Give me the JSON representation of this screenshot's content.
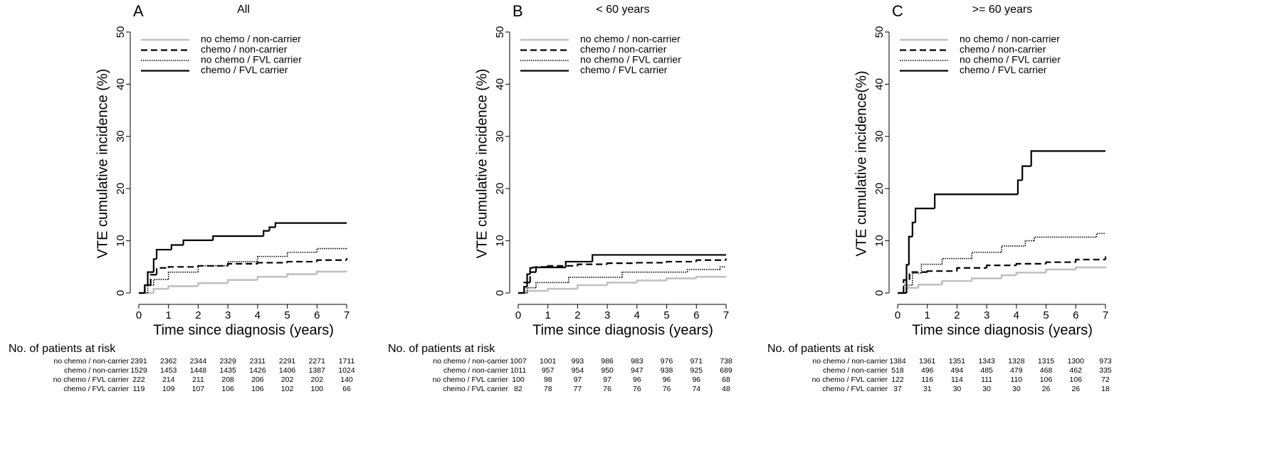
{
  "chart_data": [
    {
      "type": "line",
      "step": true,
      "panel": "A",
      "title": "All",
      "y_label": "VTE cumulative incidence (%)",
      "x_label": "Time since diagnosis (years)",
      "xlim": [
        0,
        7
      ],
      "xticks": [
        0,
        1,
        2,
        3,
        4,
        5,
        6,
        7
      ],
      "ylim": [
        0,
        50
      ],
      "yticks": [
        0,
        10,
        20,
        30,
        40,
        50
      ],
      "legend": "upper left",
      "series": [
        {
          "name": "no chemo / non-carrier",
          "color": "#c0c0c0",
          "style": "solid",
          "x": [
            0,
            0.5,
            1,
            2,
            3,
            4,
            5,
            6,
            7
          ],
          "values": [
            0,
            0.8,
            1.3,
            1.9,
            2.5,
            3.1,
            3.6,
            4.1,
            4.3
          ]
        },
        {
          "name": "chemo / non-carrier",
          "color": "#000000",
          "style": "dashed",
          "x": [
            0,
            0.2,
            0.4,
            0.6,
            1,
            2,
            3,
            4,
            5,
            6,
            7
          ],
          "values": [
            0,
            1.5,
            3.5,
            4.8,
            5,
            5.2,
            5.6,
            5.8,
            6,
            6.3,
            6.7
          ]
        },
        {
          "name": "no chemo / FVL carrier",
          "color": "#000000",
          "style": "dotted",
          "x": [
            0,
            0.3,
            0.5,
            1,
            2,
            3,
            4,
            5,
            6,
            7
          ],
          "values": [
            0,
            1.5,
            2.6,
            4,
            5.2,
            6,
            7,
            7.8,
            8.5,
            8.6
          ]
        },
        {
          "name": "chemo / FVL carrier",
          "color": "#000000",
          "style": "solid",
          "x": [
            0,
            0.2,
            0.3,
            0.5,
            0.6,
            1.1,
            1.5,
            2.5,
            4.2,
            4.4,
            4.6,
            7
          ],
          "values": [
            0,
            1.5,
            4,
            6.5,
            8.3,
            9.2,
            10.1,
            10.9,
            11.9,
            12.6,
            13.4,
            13.4
          ]
        }
      ],
      "risk_table": {
        "title": "No. of patients at risk",
        "rows": [
          {
            "label": "no chemo / non-carrier",
            "values": [
              2391,
              2362,
              2344,
              2329,
              2311,
              2291,
              2271,
              1711
            ]
          },
          {
            "label": "chemo / non-carrier",
            "values": [
              1529,
              1453,
              1448,
              1435,
              1426,
              1406,
              1387,
              1024
            ]
          },
          {
            "label": "no chemo / FVL carrier",
            "values": [
              222,
              214,
              211,
              208,
              206,
              202,
              202,
              140
            ]
          },
          {
            "label": "chemo / FVL carrier",
            "values": [
              119,
              109,
              107,
              106,
              106,
              102,
              100,
              66
            ]
          }
        ]
      }
    },
    {
      "type": "line",
      "step": true,
      "panel": "B",
      "title": "< 60 years",
      "y_label": "VTE cumulative incidence (%)",
      "x_label": "Time since diagnosis (years)",
      "xlim": [
        0,
        7
      ],
      "xticks": [
        0,
        1,
        2,
        3,
        4,
        5,
        6,
        7
      ],
      "ylim": [
        0,
        50
      ],
      "yticks": [
        0,
        10,
        20,
        30,
        40,
        50
      ],
      "legend": "upper left",
      "series": [
        {
          "name": "no chemo / non-carrier",
          "color": "#c0c0c0",
          "style": "solid",
          "x": [
            0,
            0.3,
            1,
            2,
            3,
            4,
            5,
            6,
            7
          ],
          "values": [
            0,
            0.4,
            0.8,
            1.5,
            2,
            2.4,
            2.8,
            3.1,
            3.2
          ]
        },
        {
          "name": "chemo / non-carrier",
          "color": "#000000",
          "style": "dashed",
          "x": [
            0,
            0.2,
            0.4,
            0.6,
            1,
            2,
            3,
            4,
            5,
            6,
            7
          ],
          "values": [
            0,
            2,
            4,
            5,
            5.2,
            5.5,
            5.7,
            5.8,
            6,
            6.3,
            6.6
          ]
        },
        {
          "name": "no chemo / FVL carrier",
          "color": "#000000",
          "style": "dotted",
          "x": [
            0,
            0.3,
            0.6,
            1.7,
            3.5,
            5.7,
            6.8,
            7
          ],
          "values": [
            0,
            1,
            2,
            3,
            4,
            4.5,
            5,
            5
          ]
        },
        {
          "name": "chemo / FVL carrier",
          "color": "#000000",
          "style": "solid",
          "x": [
            0,
            0.2,
            0.3,
            0.4,
            0.5,
            1.6,
            2.5,
            7
          ],
          "values": [
            0,
            1.2,
            3.6,
            4.8,
            4.9,
            6,
            7.3,
            7.3
          ]
        }
      ],
      "risk_table": {
        "title": "No. of patients at risk",
        "rows": [
          {
            "label": "no chemo / non-carrier",
            "values": [
              1007,
              1001,
              993,
              986,
              983,
              976,
              971,
              738
            ]
          },
          {
            "label": "chemo / non-carrier",
            "values": [
              1011,
              957,
              954,
              950,
              947,
              938,
              925,
              689
            ]
          },
          {
            "label": "no chemo / FVL carrier",
            "values": [
              100,
              98,
              97,
              97,
              96,
              96,
              96,
              68
            ]
          },
          {
            "label": "chemo / FVL carrier",
            "values": [
              82,
              78,
              77,
              76,
              76,
              76,
              74,
              48
            ]
          }
        ]
      }
    },
    {
      "type": "line",
      "step": true,
      "panel": "C",
      "title": ">= 60 years",
      "y_label": "VTE cumulative incidence(%)",
      "x_label": "Time since diagnosis (years)",
      "xlim": [
        0,
        7
      ],
      "xticks": [
        0,
        1,
        2,
        3,
        4,
        5,
        6,
        7
      ],
      "ylim": [
        0,
        50
      ],
      "yticks": [
        0,
        10,
        20,
        30,
        40,
        50
      ],
      "legend": "upper left",
      "series": [
        {
          "name": "no chemo / non-carrier",
          "color": "#c0c0c0",
          "style": "solid",
          "x": [
            0,
            0.3,
            0.7,
            1.5,
            2.5,
            3.5,
            4,
            5,
            6,
            7
          ],
          "values": [
            0,
            1,
            1.6,
            2.3,
            2.8,
            3.4,
            3.9,
            4.5,
            4.9,
            5.1
          ]
        },
        {
          "name": "chemo / non-carrier",
          "color": "#000000",
          "style": "dashed",
          "x": [
            0,
            0.2,
            0.4,
            1,
            2,
            3,
            4,
            5,
            6,
            7
          ],
          "values": [
            0,
            2.5,
            4,
            4.2,
            4.8,
            5.3,
            5.6,
            5.9,
            6.4,
            7
          ]
        },
        {
          "name": "no chemo / FVL carrier",
          "color": "#000000",
          "style": "dotted",
          "x": [
            0,
            0.2,
            0.5,
            0.8,
            1.5,
            2.5,
            3.5,
            4.3,
            4.6,
            6.7,
            7
          ],
          "values": [
            0,
            1.5,
            3.8,
            5.5,
            6.6,
            7.8,
            9,
            10,
            10.7,
            11.4,
            11.4
          ]
        },
        {
          "name": "chemo / FVL carrier",
          "color": "#000000",
          "style": "solid",
          "x": [
            0,
            0.3,
            0.38,
            0.5,
            0.6,
            1.25,
            4.05,
            4.2,
            4.5,
            7
          ],
          "values": [
            0,
            5.4,
            10.8,
            13.5,
            16.2,
            18.9,
            21.6,
            24.3,
            27.2,
            27.2
          ]
        }
      ],
      "risk_table": {
        "title": "No. of patients at risk",
        "rows": [
          {
            "label": "no chemo / non-carrier",
            "values": [
              1384,
              1361,
              1351,
              1343,
              1328,
              1315,
              1300,
              973
            ]
          },
          {
            "label": "chemo / non-carrier",
            "values": [
              518,
              496,
              494,
              485,
              479,
              468,
              462,
              335
            ]
          },
          {
            "label": "no chemo / FVL carrier",
            "values": [
              122,
              116,
              114,
              111,
              110,
              106,
              106,
              72
            ]
          },
          {
            "label": "chemo / FVL carrier",
            "values": [
              37,
              31,
              30,
              30,
              30,
              26,
              26,
              18
            ]
          }
        ]
      }
    }
  ]
}
